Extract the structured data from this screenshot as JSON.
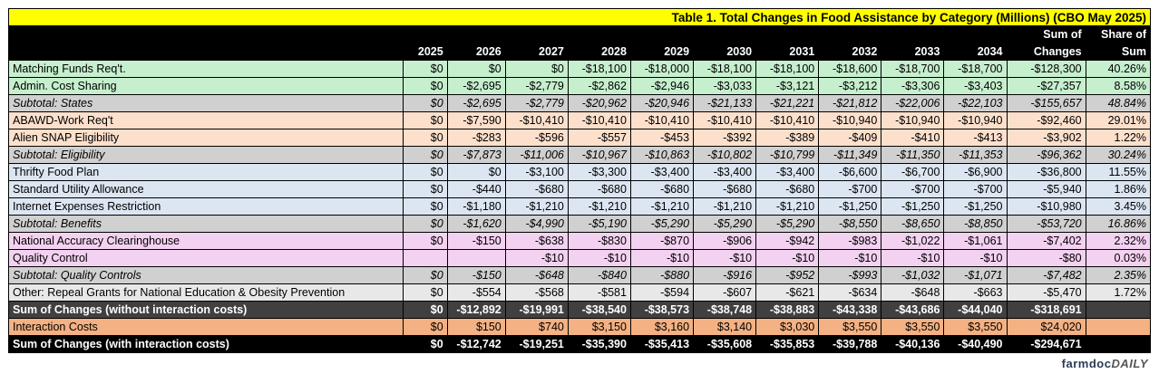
{
  "title": "Table 1. Total Changes in Food Assistance by Category (Millions) (CBO May 2025)",
  "header_top": {
    "sum": "Sum of",
    "share": "Share of"
  },
  "header": [
    "",
    "2025",
    "2026",
    "2027",
    "2028",
    "2029",
    "2030",
    "2031",
    "2032",
    "2033",
    "2034",
    "Changes",
    "Sum"
  ],
  "rows": [
    {
      "kind": "item",
      "group": "g-states",
      "cells": [
        "Matching Funds Req't.",
        "$0",
        "$0",
        "$0",
        "-$18,100",
        "-$18,000",
        "-$18,100",
        "-$18,100",
        "-$18,600",
        "-$18,700",
        "-$18,700",
        "-$128,300",
        "40.26%"
      ]
    },
    {
      "kind": "item",
      "group": "g-states",
      "cells": [
        "Admin. Cost Sharing",
        "$0",
        "-$2,695",
        "-$2,779",
        "-$2,862",
        "-$2,946",
        "-$3,033",
        "-$3,121",
        "-$3,212",
        "-$3,306",
        "-$3,403",
        "-$27,357",
        "8.58%"
      ]
    },
    {
      "kind": "sub",
      "group": "g-states-sub",
      "cells": [
        "Subtotal: States",
        "$0",
        "-$2,695",
        "-$2,779",
        "-$20,962",
        "-$20,946",
        "-$21,133",
        "-$21,221",
        "-$21,812",
        "-$22,006",
        "-$22,103",
        "-$155,657",
        "48.84%"
      ]
    },
    {
      "kind": "item",
      "group": "g-elig",
      "cells": [
        "ABAWD-Work Req't",
        "$0",
        "-$7,590",
        "-$10,410",
        "-$10,410",
        "-$10,410",
        "-$10,410",
        "-$10,410",
        "-$10,940",
        "-$10,940",
        "-$10,940",
        "-$92,460",
        "29.01%"
      ]
    },
    {
      "kind": "item",
      "group": "g-elig",
      "cells": [
        "Alien SNAP Eligibility",
        "$0",
        "-$283",
        "-$596",
        "-$557",
        "-$453",
        "-$392",
        "-$389",
        "-$409",
        "-$410",
        "-$413",
        "-$3,902",
        "1.22%"
      ]
    },
    {
      "kind": "sub",
      "group": "g-elig-sub",
      "cells": [
        "Subtotal: Eligibility",
        "$0",
        "-$7,873",
        "-$11,006",
        "-$10,967",
        "-$10,863",
        "-$10,802",
        "-$10,799",
        "-$11,349",
        "-$11,350",
        "-$11,353",
        "-$96,362",
        "30.24%"
      ]
    },
    {
      "kind": "item",
      "group": "g-ben",
      "cells": [
        "Thrifty Food Plan",
        "$0",
        "$0",
        "-$3,100",
        "-$3,300",
        "-$3,400",
        "-$3,400",
        "-$3,400",
        "-$6,600",
        "-$6,700",
        "-$6,900",
        "-$36,800",
        "11.55%"
      ]
    },
    {
      "kind": "item",
      "group": "g-ben",
      "cells": [
        "Standard Utility Allowance",
        "$0",
        "-$440",
        "-$680",
        "-$680",
        "-$680",
        "-$680",
        "-$680",
        "-$700",
        "-$700",
        "-$700",
        "-$5,940",
        "1.86%"
      ]
    },
    {
      "kind": "item",
      "group": "g-ben",
      "cells": [
        "Internet Expenses Restriction",
        "$0",
        "-$1,180",
        "-$1,210",
        "-$1,210",
        "-$1,210",
        "-$1,210",
        "-$1,210",
        "-$1,250",
        "-$1,250",
        "-$1,250",
        "-$10,980",
        "3.45%"
      ]
    },
    {
      "kind": "sub",
      "group": "g-ben-sub",
      "cells": [
        "Subtotal: Benefits",
        "$0",
        "-$1,620",
        "-$4,990",
        "-$5,190",
        "-$5,290",
        "-$5,290",
        "-$5,290",
        "-$8,550",
        "-$8,650",
        "-$8,850",
        "-$53,720",
        "16.86%"
      ]
    },
    {
      "kind": "item",
      "group": "g-qc",
      "cells": [
        "National Accuracy Clearinghouse",
        "$0",
        "-$150",
        "-$638",
        "-$830",
        "-$870",
        "-$906",
        "-$942",
        "-$983",
        "-$1,022",
        "-$1,061",
        "-$7,402",
        "2.32%"
      ]
    },
    {
      "kind": "item",
      "group": "g-qc",
      "cells": [
        "Quality Control",
        "",
        "",
        "-$10",
        "-$10",
        "-$10",
        "-$10",
        "-$10",
        "-$10",
        "-$10",
        "-$10",
        "-$80",
        "0.03%"
      ]
    },
    {
      "kind": "sub",
      "group": "g-qc-sub",
      "cells": [
        "Subtotal: Quality Controls",
        "$0",
        "-$150",
        "-$648",
        "-$840",
        "-$880",
        "-$916",
        "-$952",
        "-$993",
        "-$1,032",
        "-$1,071",
        "-$7,482",
        "2.35%"
      ]
    },
    {
      "kind": "item",
      "group": "g-other",
      "cells": [
        "Other: Repeal Grants for National Education & Obesity Prevention",
        "$0",
        "-$554",
        "-$568",
        "-$581",
        "-$594",
        "-$607",
        "-$621",
        "-$634",
        "-$648",
        "-$663",
        "-$5,470",
        "1.72%"
      ]
    },
    {
      "kind": "dark",
      "group": "",
      "cells": [
        "Sum of Changes (without interaction costs)",
        "$0",
        "-$12,892",
        "-$19,991",
        "-$38,540",
        "-$38,573",
        "-$38,748",
        "-$38,883",
        "-$43,338",
        "-$43,686",
        "-$44,040",
        "-$318,691",
        ""
      ]
    },
    {
      "kind": "item",
      "group": "g-int",
      "cells": [
        "Interaction Costs",
        "$0",
        "$150",
        "$740",
        "$3,150",
        "$3,160",
        "$3,140",
        "$3,030",
        "$3,550",
        "$3,550",
        "$3,550",
        "$24,020",
        ""
      ]
    },
    {
      "kind": "total",
      "group": "",
      "cells": [
        "Sum of Changes (with interaction costs)",
        "$0",
        "-$12,742",
        "-$19,251",
        "-$35,390",
        "-$35,413",
        "-$35,608",
        "-$35,853",
        "-$39,788",
        "-$40,136",
        "-$40,490",
        "-$294,671",
        ""
      ]
    }
  ],
  "logo": {
    "a": "farmdoc",
    "b": "DAILY"
  }
}
